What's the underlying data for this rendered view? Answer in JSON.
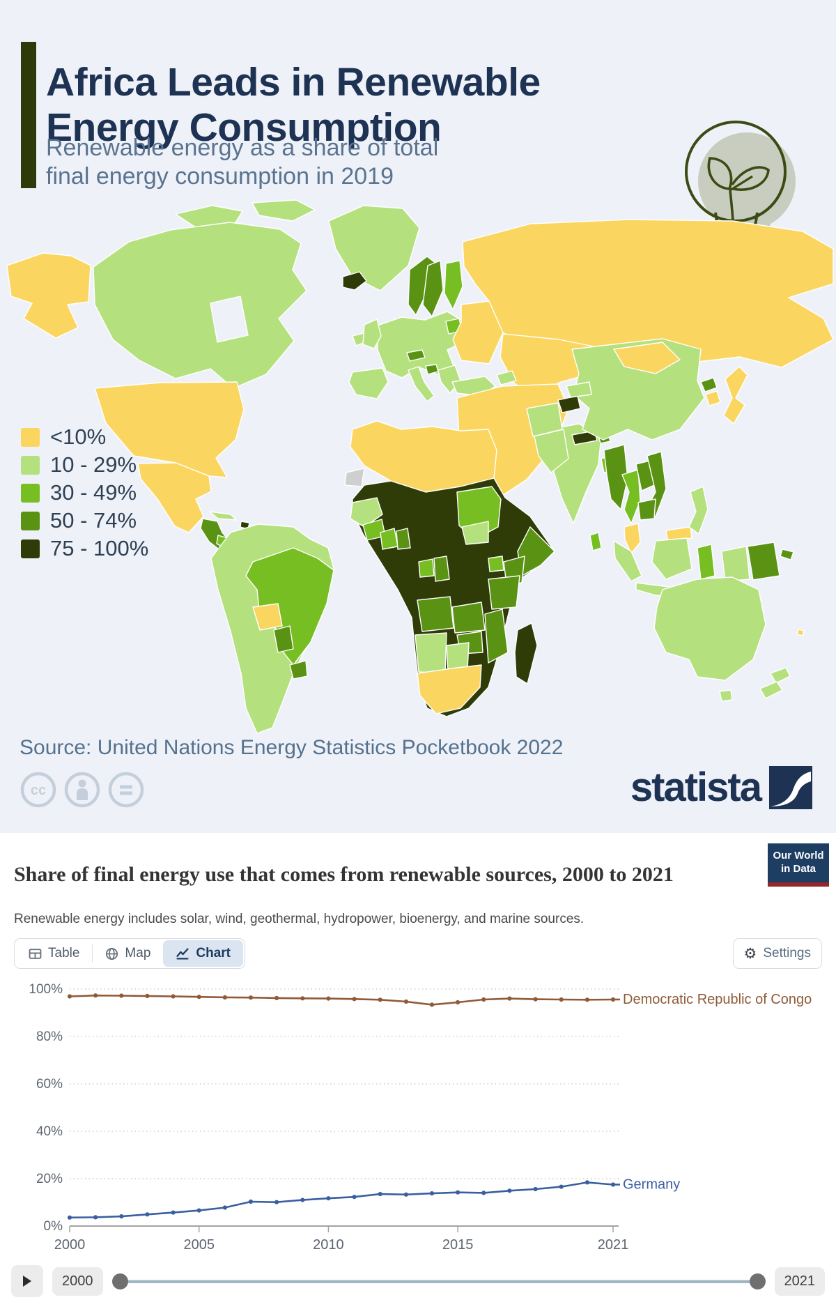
{
  "infographic": {
    "title_line1": "Africa Leads in Renewable",
    "title_line2": "Energy Consumption",
    "subtitle_line1": "Renewable energy as a share of total",
    "subtitle_line2": "final energy consumption in 2019",
    "source": "Source: United Nations Energy Statistics Pocketbook 2022",
    "brand": "statista",
    "background_color": "#EEF2F8",
    "accent_bar_color": "#2F3A0B",
    "brand_color": "#1E3253",
    "legend": [
      {
        "label": "<10%",
        "color": "#FAD661"
      },
      {
        "label": "10 - 29%",
        "color": "#B5E07E"
      },
      {
        "label": "30 - 49%",
        "color": "#77BE23"
      },
      {
        "label": "50 - 74%",
        "color": "#5A9214"
      },
      {
        "label": "75 - 100%",
        "color": "#303C08"
      }
    ],
    "license_icons": [
      "creative-commons",
      "attribution",
      "no-derivatives"
    ]
  },
  "owid": {
    "title": "Share of final energy use that comes from renewable sources, 2000 to 2021",
    "subtitle": "Renewable energy includes solar, wind, geothermal, hydropower, bioenergy, and marine sources.",
    "logo_line1": "Our World",
    "logo_line2": "in Data",
    "logo_bg": "#1D3D63",
    "logo_red": "#98242C",
    "tabs": [
      {
        "label": "Table",
        "active": false
      },
      {
        "label": "Map",
        "active": false
      },
      {
        "label": "Chart",
        "active": true
      }
    ],
    "active_tab_bg": "#DBE5F1",
    "settings_label": "Settings",
    "timeline": {
      "start": "2000",
      "end": "2021"
    }
  },
  "chart_data": {
    "type": "line",
    "title": "Share of final energy use that comes from renewable sources, 2000 to 2021",
    "xlabel": "",
    "ylabel": "",
    "ylim": [
      0,
      100
    ],
    "grid": true,
    "legend_position": "right-of-line",
    "yticks": [
      "0%",
      "20%",
      "40%",
      "60%",
      "80%",
      "100%"
    ],
    "xticks": [
      2000,
      2005,
      2010,
      2015,
      2021
    ],
    "x": [
      2000,
      2001,
      2002,
      2003,
      2004,
      2005,
      2006,
      2007,
      2008,
      2009,
      2010,
      2011,
      2012,
      2013,
      2014,
      2015,
      2016,
      2017,
      2018,
      2019,
      2020,
      2021
    ],
    "series": [
      {
        "name": "Democratic Republic of Congo",
        "color": "#8F5A38",
        "values": [
          96.9,
          97.3,
          97.2,
          97.1,
          96.9,
          96.7,
          96.5,
          96.4,
          96.2,
          96.1,
          96.0,
          95.8,
          95.5,
          94.7,
          93.4,
          94.4,
          95.6,
          96.0,
          95.7,
          95.6,
          95.5,
          95.6
        ]
      },
      {
        "name": "Germany",
        "color": "#3A5FA0",
        "values": [
          3.6,
          3.7,
          4.1,
          4.9,
          5.7,
          6.6,
          7.8,
          10.3,
          10.1,
          11.0,
          11.7,
          12.3,
          13.5,
          13.3,
          13.8,
          14.2,
          14.0,
          14.9,
          15.6,
          16.6,
          18.4,
          17.5
        ]
      }
    ]
  }
}
